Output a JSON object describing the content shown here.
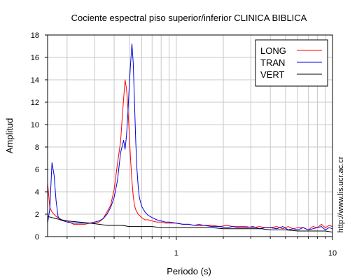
{
  "chart_data": {
    "type": "line",
    "title": "Cociente espectral piso superior/inferior  CLINICA BIBLICA",
    "xlabel": "Periodo (s)",
    "ylabel": "Amplitud",
    "xscale": "log",
    "xlim": [
      0.15,
      10
    ],
    "ylim": [
      0,
      18
    ],
    "grid": true,
    "legend_position": "top-right",
    "x_tick_labels": [
      "1",
      "10"
    ],
    "y_ticks": [
      0,
      2,
      4,
      6,
      8,
      10,
      12,
      14,
      16,
      18
    ],
    "series": [
      {
        "name": "LONG",
        "color": "#ff0000",
        "x": [
          0.15,
          0.155,
          0.16,
          0.17,
          0.18,
          0.19,
          0.2,
          0.22,
          0.24,
          0.26,
          0.28,
          0.3,
          0.32,
          0.34,
          0.36,
          0.38,
          0.4,
          0.42,
          0.44,
          0.45,
          0.46,
          0.47,
          0.48,
          0.49,
          0.5,
          0.51,
          0.52,
          0.53,
          0.54,
          0.55,
          0.57,
          0.6,
          0.63,
          0.66,
          0.7,
          0.75,
          0.8,
          0.85,
          0.9,
          1.0,
          1.1,
          1.2,
          1.3,
          1.4,
          1.5,
          1.7,
          1.9,
          2.1,
          2.3,
          2.5,
          2.8,
          3.1,
          3.4,
          3.7,
          4.0,
          4.4,
          4.8,
          5.2,
          5.6,
          6.0,
          6.5,
          7.0,
          7.5,
          8.0,
          8.5,
          9.0,
          9.5,
          10.0
        ],
        "y": [
          4.8,
          2.6,
          2.2,
          1.8,
          1.6,
          1.4,
          1.4,
          1.1,
          1.1,
          1.1,
          1.2,
          1.2,
          1.3,
          1.6,
          2.2,
          2.8,
          4.2,
          6.5,
          8.5,
          10.5,
          12.3,
          14.0,
          13.2,
          11.5,
          9.2,
          6.8,
          5.0,
          3.6,
          2.8,
          2.4,
          2.0,
          1.7,
          1.5,
          1.5,
          1.4,
          1.3,
          1.3,
          1.2,
          1.2,
          1.2,
          1.1,
          1.1,
          1.0,
          1.1,
          1.0,
          1.0,
          0.9,
          1.0,
          0.9,
          0.9,
          0.9,
          0.8,
          0.9,
          0.8,
          0.8,
          0.9,
          0.7,
          0.9,
          0.7,
          0.8,
          0.8,
          0.6,
          0.9,
          0.8,
          1.1,
          0.8,
          1.0,
          0.9
        ]
      },
      {
        "name": "TRAN",
        "color": "#0000dd",
        "x": [
          0.15,
          0.155,
          0.16,
          0.165,
          0.17,
          0.175,
          0.18,
          0.19,
          0.2,
          0.22,
          0.24,
          0.26,
          0.28,
          0.3,
          0.32,
          0.34,
          0.36,
          0.38,
          0.4,
          0.42,
          0.44,
          0.46,
          0.47,
          0.48,
          0.49,
          0.5,
          0.51,
          0.52,
          0.53,
          0.54,
          0.55,
          0.56,
          0.57,
          0.58,
          0.6,
          0.63,
          0.66,
          0.7,
          0.75,
          0.8,
          0.85,
          0.9,
          1.0,
          1.1,
          1.2,
          1.3,
          1.4,
          1.5,
          1.7,
          1.9,
          2.1,
          2.3,
          2.5,
          2.8,
          3.1,
          3.4,
          3.7,
          4.0,
          4.4,
          4.8,
          5.2,
          5.6,
          6.0,
          6.5,
          7.0,
          7.5,
          8.0,
          8.5,
          9.0,
          9.5,
          10.0
        ],
        "y": [
          1.2,
          2.5,
          6.6,
          5.5,
          3.2,
          1.8,
          1.5,
          1.4,
          1.3,
          1.2,
          1.2,
          1.2,
          1.2,
          1.3,
          1.4,
          1.6,
          2.0,
          2.6,
          3.5,
          5.0,
          7.5,
          8.6,
          7.8,
          9.0,
          11.0,
          13.5,
          15.5,
          17.2,
          15.5,
          12.0,
          8.5,
          6.0,
          4.5,
          3.5,
          2.7,
          2.2,
          1.9,
          1.7,
          1.5,
          1.4,
          1.3,
          1.3,
          1.2,
          1.1,
          1.1,
          1.0,
          1.0,
          1.0,
          0.9,
          0.9,
          0.8,
          0.9,
          0.8,
          0.8,
          0.9,
          0.7,
          0.8,
          0.8,
          0.7,
          0.9,
          0.6,
          0.7,
          0.6,
          0.8,
          0.6,
          0.7,
          0.8,
          0.9,
          0.6,
          0.8,
          0.7
        ]
      },
      {
        "name": "VERT",
        "color": "#000000",
        "x": [
          0.15,
          0.17,
          0.2,
          0.24,
          0.28,
          0.32,
          0.36,
          0.4,
          0.45,
          0.5,
          0.55,
          0.6,
          0.7,
          0.8,
          0.9,
          1.0,
          1.2,
          1.4,
          1.7,
          2.0,
          2.5,
          3.0,
          3.5,
          4.0,
          5.0,
          6.0,
          7.0,
          8.0,
          9.0,
          10.0
        ],
        "y": [
          1.8,
          1.6,
          1.4,
          1.3,
          1.2,
          1.1,
          1.0,
          1.0,
          1.0,
          0.9,
          0.9,
          0.9,
          0.9,
          0.8,
          0.8,
          0.8,
          0.8,
          0.8,
          0.8,
          0.7,
          0.7,
          0.7,
          0.7,
          0.6,
          0.6,
          0.5,
          0.5,
          0.5,
          0.5,
          0.4
        ]
      }
    ]
  },
  "side_text": "http://www.lis.ucr.ac.cr"
}
